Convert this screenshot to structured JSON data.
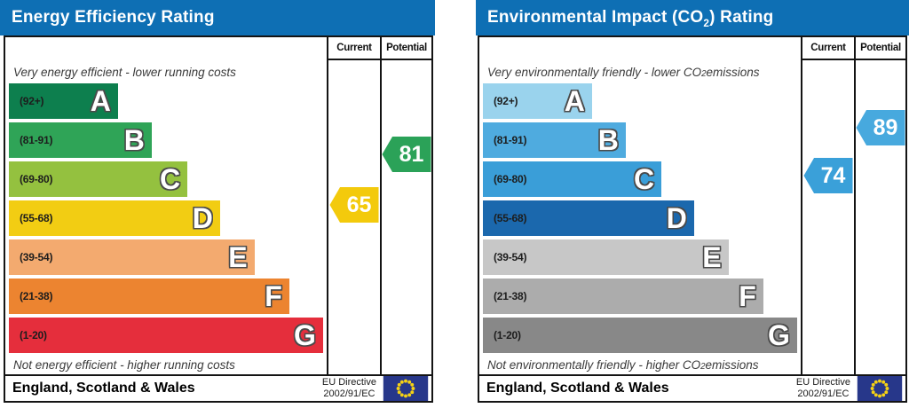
{
  "colors": {
    "header_bg": "#0e6fb4",
    "border": "#141414",
    "flag_bg": "#27378a",
    "flag_star": "#f6d214"
  },
  "panels": [
    {
      "title_parts": {
        "pre": "Energy Efficiency Rating",
        "sub": "",
        "post": ""
      },
      "columns": {
        "current": "Current",
        "potential": "Potential"
      },
      "caption_top_parts": {
        "pre": "Very energy efficient - lower running costs",
        "sub": "",
        "post": ""
      },
      "caption_bottom_parts": {
        "pre": "Not energy efficient - higher running costs",
        "sub": "",
        "post": ""
      },
      "bands": [
        {
          "letter": "A",
          "range": "(92+)",
          "color": "#0d7f4e",
          "width": 34.5
        },
        {
          "letter": "B",
          "range": "(81-91)",
          "color": "#2fa457",
          "width": 45.2
        },
        {
          "letter": "C",
          "range": "(69-80)",
          "color": "#94c13f",
          "width": 56.5
        },
        {
          "letter": "D",
          "range": "(55-68)",
          "color": "#f2cd13",
          "width": 66.8
        },
        {
          "letter": "E",
          "range": "(39-54)",
          "color": "#f3aa6f",
          "width": 77.7
        },
        {
          "letter": "F",
          "range": "(21-38)",
          "color": "#ec8430",
          "width": 88.7
        },
        {
          "letter": "G",
          "range": "(1-20)",
          "color": "#e52e3c",
          "width": 99.4
        }
      ],
      "current": {
        "value": "65",
        "color": "#f3ca0c"
      },
      "potential": {
        "value": "81",
        "color": "#2ba258"
      },
      "footer": {
        "region": "England, Scotland & Wales",
        "directive_line1": "EU Directive",
        "directive_line2": "2002/91/EC"
      }
    },
    {
      "title_parts": {
        "pre": "Environmental Impact (CO",
        "sub": "2",
        "post": ") Rating"
      },
      "columns": {
        "current": "Current",
        "potential": "Potential"
      },
      "caption_top_parts": {
        "pre": "Very environmentally friendly - lower CO",
        "sub": "2",
        "post": " emissions"
      },
      "caption_bottom_parts": {
        "pre": "Not environmentally friendly - higher CO",
        "sub": "2",
        "post": " emissions"
      },
      "bands": [
        {
          "letter": "A",
          "range": "(92+)",
          "color": "#9ad3ed",
          "width": 34.5
        },
        {
          "letter": "B",
          "range": "(81-91)",
          "color": "#4fabdf",
          "width": 45.2
        },
        {
          "letter": "C",
          "range": "(69-80)",
          "color": "#3a9ed8",
          "width": 56.5
        },
        {
          "letter": "D",
          "range": "(55-68)",
          "color": "#1b68ad",
          "width": 66.8
        },
        {
          "letter": "E",
          "range": "(39-54)",
          "color": "#c7c7c7",
          "width": 77.7
        },
        {
          "letter": "F",
          "range": "(21-38)",
          "color": "#acacac",
          "width": 88.7
        },
        {
          "letter": "G",
          "range": "(1-20)",
          "color": "#888888",
          "width": 99.4
        }
      ],
      "current": {
        "value": "74",
        "color": "#3aa0d9"
      },
      "potential": {
        "value": "89",
        "color": "#47a9de"
      },
      "footer": {
        "region": "England, Scotland & Wales",
        "directive_line1": "EU Directive",
        "directive_line2": "2002/91/EC"
      }
    }
  ],
  "chart_data": [
    {
      "type": "bar",
      "title": "Energy Efficiency Rating",
      "subtitle_top": "Very energy efficient - lower running costs",
      "subtitle_bottom": "Not energy efficient - higher running costs",
      "bands": [
        {
          "label": "A",
          "range": "92+"
        },
        {
          "label": "B",
          "range": "81-91"
        },
        {
          "label": "C",
          "range": "69-80"
        },
        {
          "label": "D",
          "range": "55-68"
        },
        {
          "label": "E",
          "range": "39-54"
        },
        {
          "label": "F",
          "range": "21-38"
        },
        {
          "label": "G",
          "range": "1-20"
        }
      ],
      "series": [
        {
          "name": "Current",
          "value": 65,
          "band": "D"
        },
        {
          "name": "Potential",
          "value": 81,
          "band": "B"
        }
      ],
      "region": "England, Scotland & Wales",
      "directive": "EU Directive 2002/91/EC"
    },
    {
      "type": "bar",
      "title": "Environmental Impact (CO2) Rating",
      "subtitle_top": "Very environmentally friendly - lower CO2 emissions",
      "subtitle_bottom": "Not environmentally friendly - higher CO2 emissions",
      "bands": [
        {
          "label": "A",
          "range": "92+"
        },
        {
          "label": "B",
          "range": "81-91"
        },
        {
          "label": "C",
          "range": "69-80"
        },
        {
          "label": "D",
          "range": "55-68"
        },
        {
          "label": "E",
          "range": "39-54"
        },
        {
          "label": "F",
          "range": "21-38"
        },
        {
          "label": "G",
          "range": "1-20"
        }
      ],
      "series": [
        {
          "name": "Current",
          "value": 74,
          "band": "C"
        },
        {
          "name": "Potential",
          "value": 89,
          "band": "B"
        }
      ],
      "region": "England, Scotland & Wales",
      "directive": "EU Directive 2002/91/EC"
    }
  ]
}
